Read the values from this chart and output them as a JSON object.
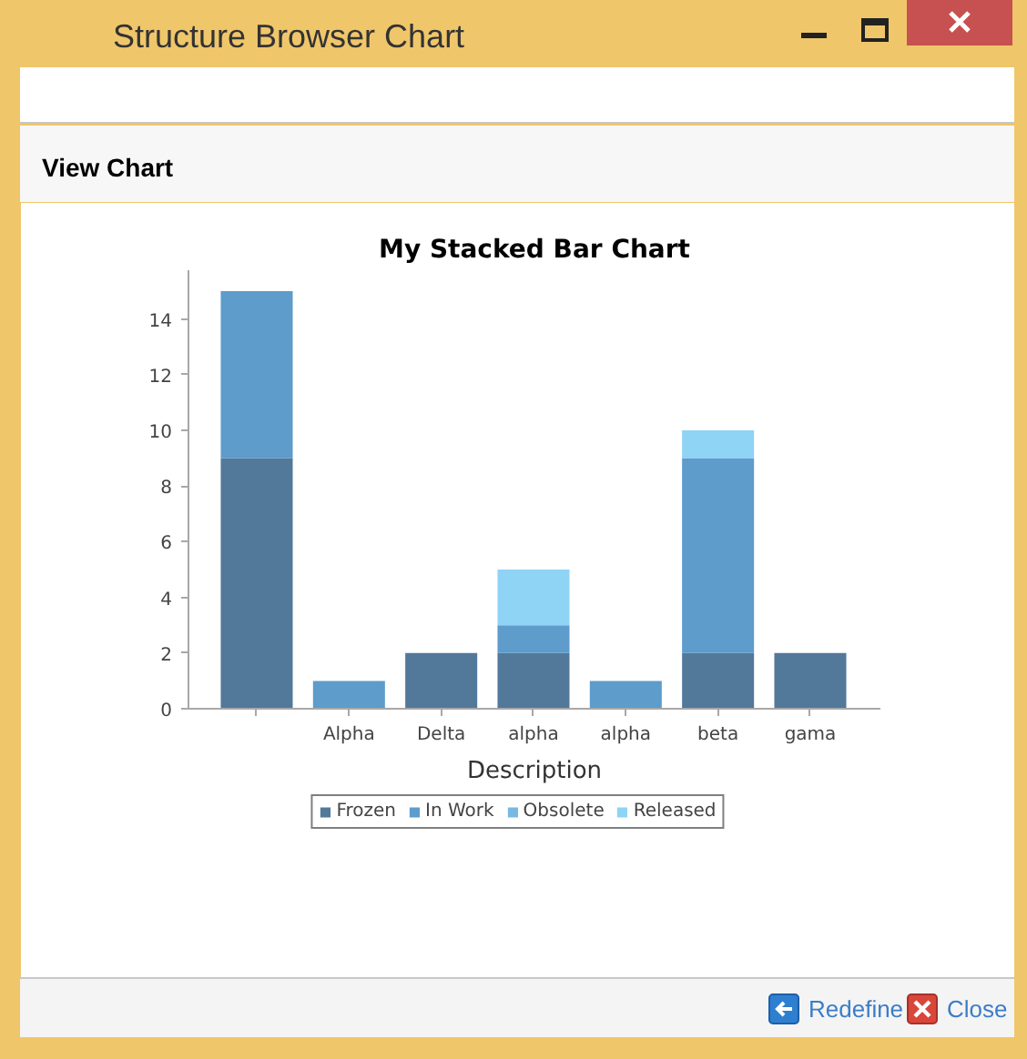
{
  "chart_data": {
    "type": "bar",
    "title": "My Stacked Bar Chart",
    "xlabel": "Description",
    "categories": [
      null,
      "Alpha",
      "Delta",
      "alpha",
      "alpha",
      "beta",
      "gama"
    ],
    "stacked": true,
    "series": [
      {
        "name": "Frozen",
        "color": "#52789a",
        "values": [
          9,
          null,
          2,
          2,
          null,
          2,
          2
        ]
      },
      {
        "name": "In Work",
        "color": "#5d9ccb",
        "values": [
          6,
          1,
          null,
          1,
          1,
          7,
          null
        ]
      },
      {
        "name": "Obsolete",
        "color": "#78b9e4",
        "values": [
          null,
          null,
          null,
          null,
          null,
          null,
          null
        ]
      },
      {
        "name": "Released",
        "color": "#8fd3f5",
        "values": [
          null,
          null,
          null,
          2,
          null,
          1,
          null
        ]
      }
    ],
    "ylim": [
      0,
      15.75
    ],
    "yticks": [
      0,
      2,
      4,
      6,
      8,
      10,
      12,
      14
    ],
    "grid": false,
    "legend": "bottom",
    "annotations": [
      "Structure Browser Chart",
      "View Chart",
      "Redefine",
      "Close"
    ]
  }
}
